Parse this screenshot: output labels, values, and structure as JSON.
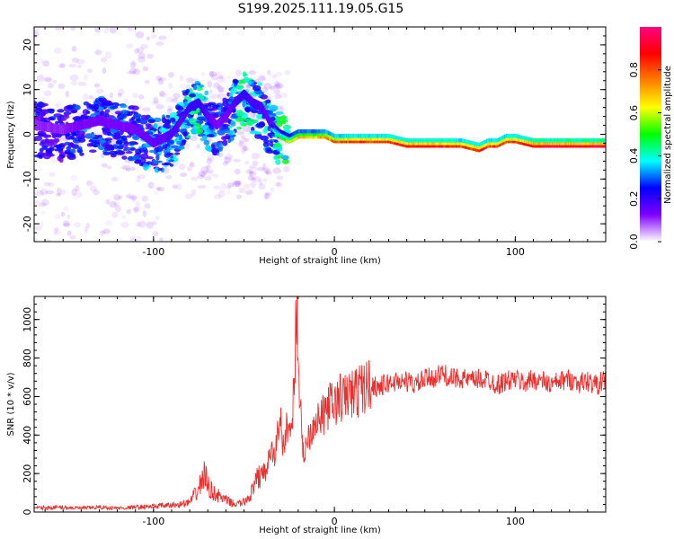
{
  "figure": {
    "title": "S199.2025.111.19.05.G15"
  },
  "chart_data": [
    {
      "type": "heatmap",
      "title": "S199.2025.111.19.05.G15",
      "xlabel": "Height of straight line (km)",
      "ylabel": "Frequency (Hz)",
      "xlim": [
        -166,
        150
      ],
      "ylim": [
        -24,
        24
      ],
      "x_ticks": [
        -100,
        0,
        100
      ],
      "y_ticks": [
        -20,
        -10,
        0,
        10,
        20
      ],
      "colorbar": {
        "label": "Normalized spectral amplitude",
        "range": [
          0,
          1
        ],
        "ticks": [
          0.0,
          0.2,
          0.4,
          0.6,
          0.8
        ],
        "tick_labels": [
          "0.0",
          "0.2",
          "0.4",
          "0.6",
          "0.8"
        ],
        "colormap": [
          "#ffffff",
          "#8000ff",
          "#0000ff",
          "#00ffff",
          "#00ff00",
          "#ffff00",
          "#ff8000",
          "#ff0000",
          "#ff0080"
        ]
      },
      "ridge": {
        "x": [
          -166,
          -150,
          -140,
          -130,
          -120,
          -110,
          -100,
          -95,
          -90,
          -85,
          -80,
          -75,
          -70,
          -65,
          -60,
          -55,
          -50,
          -45,
          -40,
          -35,
          -30,
          -25,
          -20,
          -15,
          -10,
          -5,
          0,
          10,
          20,
          30,
          40,
          50,
          60,
          70,
          80,
          85,
          90,
          95,
          100,
          110,
          120,
          130,
          140,
          150
        ],
        "y": [
          1,
          0,
          1,
          2,
          1,
          0,
          -3,
          -2,
          -1,
          2,
          5,
          6,
          3,
          1,
          3,
          6,
          8,
          6,
          5,
          1,
          -1,
          -2,
          -1,
          -1,
          -1,
          -1,
          -2,
          -2,
          -2,
          -2,
          -3,
          -3,
          -3,
          -3,
          -4,
          -3,
          -3,
          -2,
          -2,
          -3,
          -3,
          -3,
          -3,
          -3
        ],
        "amplitude": [
          0.25,
          0.25,
          0.3,
          0.3,
          0.3,
          0.3,
          0.35,
          0.35,
          0.4,
          0.35,
          0.45,
          0.45,
          0.35,
          0.3,
          0.3,
          0.4,
          0.45,
          0.4,
          0.4,
          0.35,
          0.5,
          0.6,
          0.7,
          0.7,
          0.7,
          0.75,
          0.8,
          0.85,
          0.85,
          0.85,
          0.9,
          0.9,
          0.9,
          0.85,
          0.9,
          0.85,
          0.85,
          0.85,
          0.85,
          0.95,
          0.95,
          0.95,
          0.95,
          0.95
        ]
      }
    },
    {
      "type": "line",
      "xlabel": "Height of straight line (km)",
      "ylabel": "SNR (10 * v/v)",
      "xlim": [
        -166,
        150
      ],
      "ylim": [
        0,
        1120
      ],
      "x_ticks": [
        -100,
        0,
        100
      ],
      "y_ticks": [
        0,
        200,
        400,
        600,
        800,
        1000
      ],
      "color": "#e8312f",
      "series": [
        {
          "x": [
            -166,
            -150,
            -140,
            -130,
            -120,
            -110,
            -100,
            -90,
            -85,
            -80,
            -75,
            -72,
            -70,
            -68,
            -65,
            -60,
            -55,
            -50,
            -45,
            -40,
            -38,
            -35,
            -33,
            -30,
            -28,
            -26,
            -24,
            -22,
            -21,
            -20,
            -19,
            -18,
            -17,
            -15,
            -12,
            -10,
            -8,
            -5,
            -3,
            0,
            3,
            5,
            8,
            10,
            15,
            20,
            25,
            30,
            35,
            40,
            45,
            50,
            55,
            60,
            65,
            70,
            75,
            80,
            85,
            90,
            95,
            100,
            105,
            110,
            115,
            120,
            125,
            130,
            135,
            140,
            145,
            150
          ],
          "y": [
            20,
            25,
            20,
            25,
            20,
            25,
            30,
            35,
            40,
            50,
            120,
            200,
            140,
            110,
            90,
            60,
            40,
            50,
            110,
            220,
            200,
            320,
            280,
            520,
            300,
            470,
            400,
            700,
            1110,
            820,
            600,
            350,
            300,
            380,
            450,
            500,
            470,
            520,
            560,
            550,
            600,
            580,
            620,
            610,
            640,
            660,
            650,
            670,
            680,
            680,
            660,
            690,
            700,
            720,
            690,
            700,
            680,
            690,
            690,
            660,
            680,
            690,
            670,
            690,
            680,
            660,
            680,
            690,
            670,
            680,
            660,
            690
          ]
        }
      ]
    }
  ]
}
